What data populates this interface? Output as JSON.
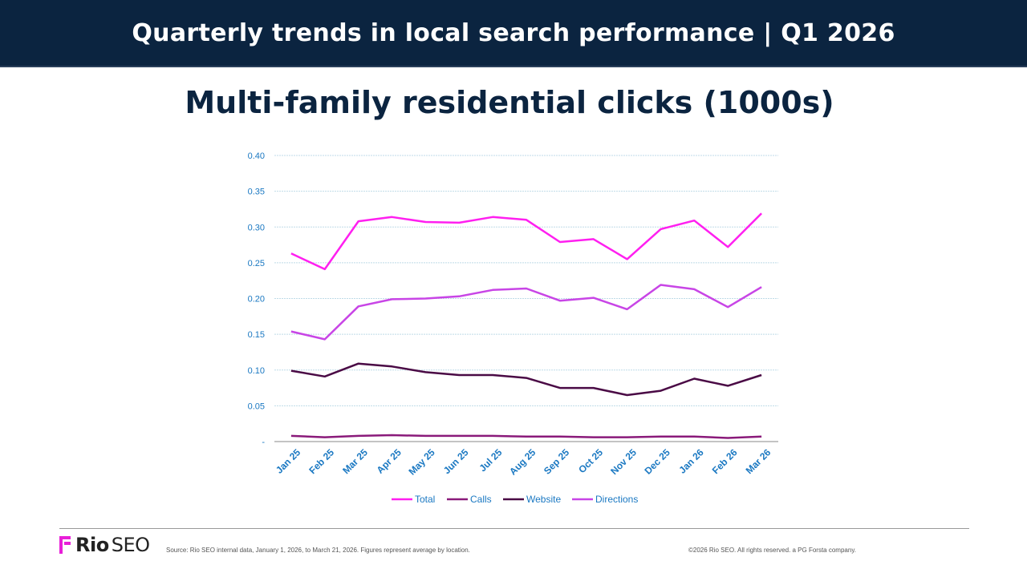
{
  "header": {
    "title": "Quarterly trends in local search performance | Q1 2026"
  },
  "footer": {
    "logo_bold": "Rio",
    "logo_light": "SEO",
    "source": "Source: Rio SEO internal data, January 1, 2026, to March 21, 2026. Figures represent average by location.",
    "copyright": "©2026 Rio SEO. All rights reserved. a PG Forsta company."
  },
  "colors": {
    "header_bg": "#0b2440",
    "axis_text": "#1a78c2",
    "grid": "#bfdbe8",
    "logo_accent": "#e81fd8"
  },
  "chart_data": {
    "type": "line",
    "title": "Multi-family residential clicks (1000s)",
    "xlabel": "",
    "ylabel": "",
    "ylim": [
      0,
      0.4
    ],
    "yticks": [
      "-",
      "0.05",
      "0.10",
      "0.15",
      "0.20",
      "0.25",
      "0.30",
      "0.35",
      "0.40"
    ],
    "grid": true,
    "legend_position": "bottom",
    "categories": [
      "Jan 25",
      "Feb 25",
      "Mar 25",
      "Apr 25",
      "May 25",
      "Jun 25",
      "Jul 25",
      "Aug 25",
      "Sep 25",
      "Oct 25",
      "Nov 25",
      "Dec 25",
      "Jan 26",
      "Feb 26",
      "Mar 26"
    ],
    "series": [
      {
        "name": "Total",
        "color": "#ff1ff0",
        "values": [
          0.263,
          0.241,
          0.308,
          0.314,
          0.307,
          0.306,
          0.314,
          0.31,
          0.279,
          0.283,
          0.255,
          0.297,
          0.309,
          0.272,
          0.319
        ]
      },
      {
        "name": "Calls",
        "color": "#8a1a7a",
        "values": [
          0.008,
          0.006,
          0.008,
          0.009,
          0.008,
          0.008,
          0.008,
          0.007,
          0.007,
          0.006,
          0.006,
          0.007,
          0.007,
          0.005,
          0.007
        ]
      },
      {
        "name": "Website",
        "color": "#4a0a45",
        "values": [
          0.099,
          0.091,
          0.109,
          0.105,
          0.097,
          0.093,
          0.093,
          0.089,
          0.075,
          0.075,
          0.065,
          0.071,
          0.088,
          0.078,
          0.093
        ]
      },
      {
        "name": "Directions",
        "color": "#c845e6",
        "values": [
          0.154,
          0.143,
          0.189,
          0.199,
          0.2,
          0.203,
          0.212,
          0.214,
          0.197,
          0.201,
          0.185,
          0.219,
          0.213,
          0.188,
          0.216
        ]
      }
    ]
  }
}
